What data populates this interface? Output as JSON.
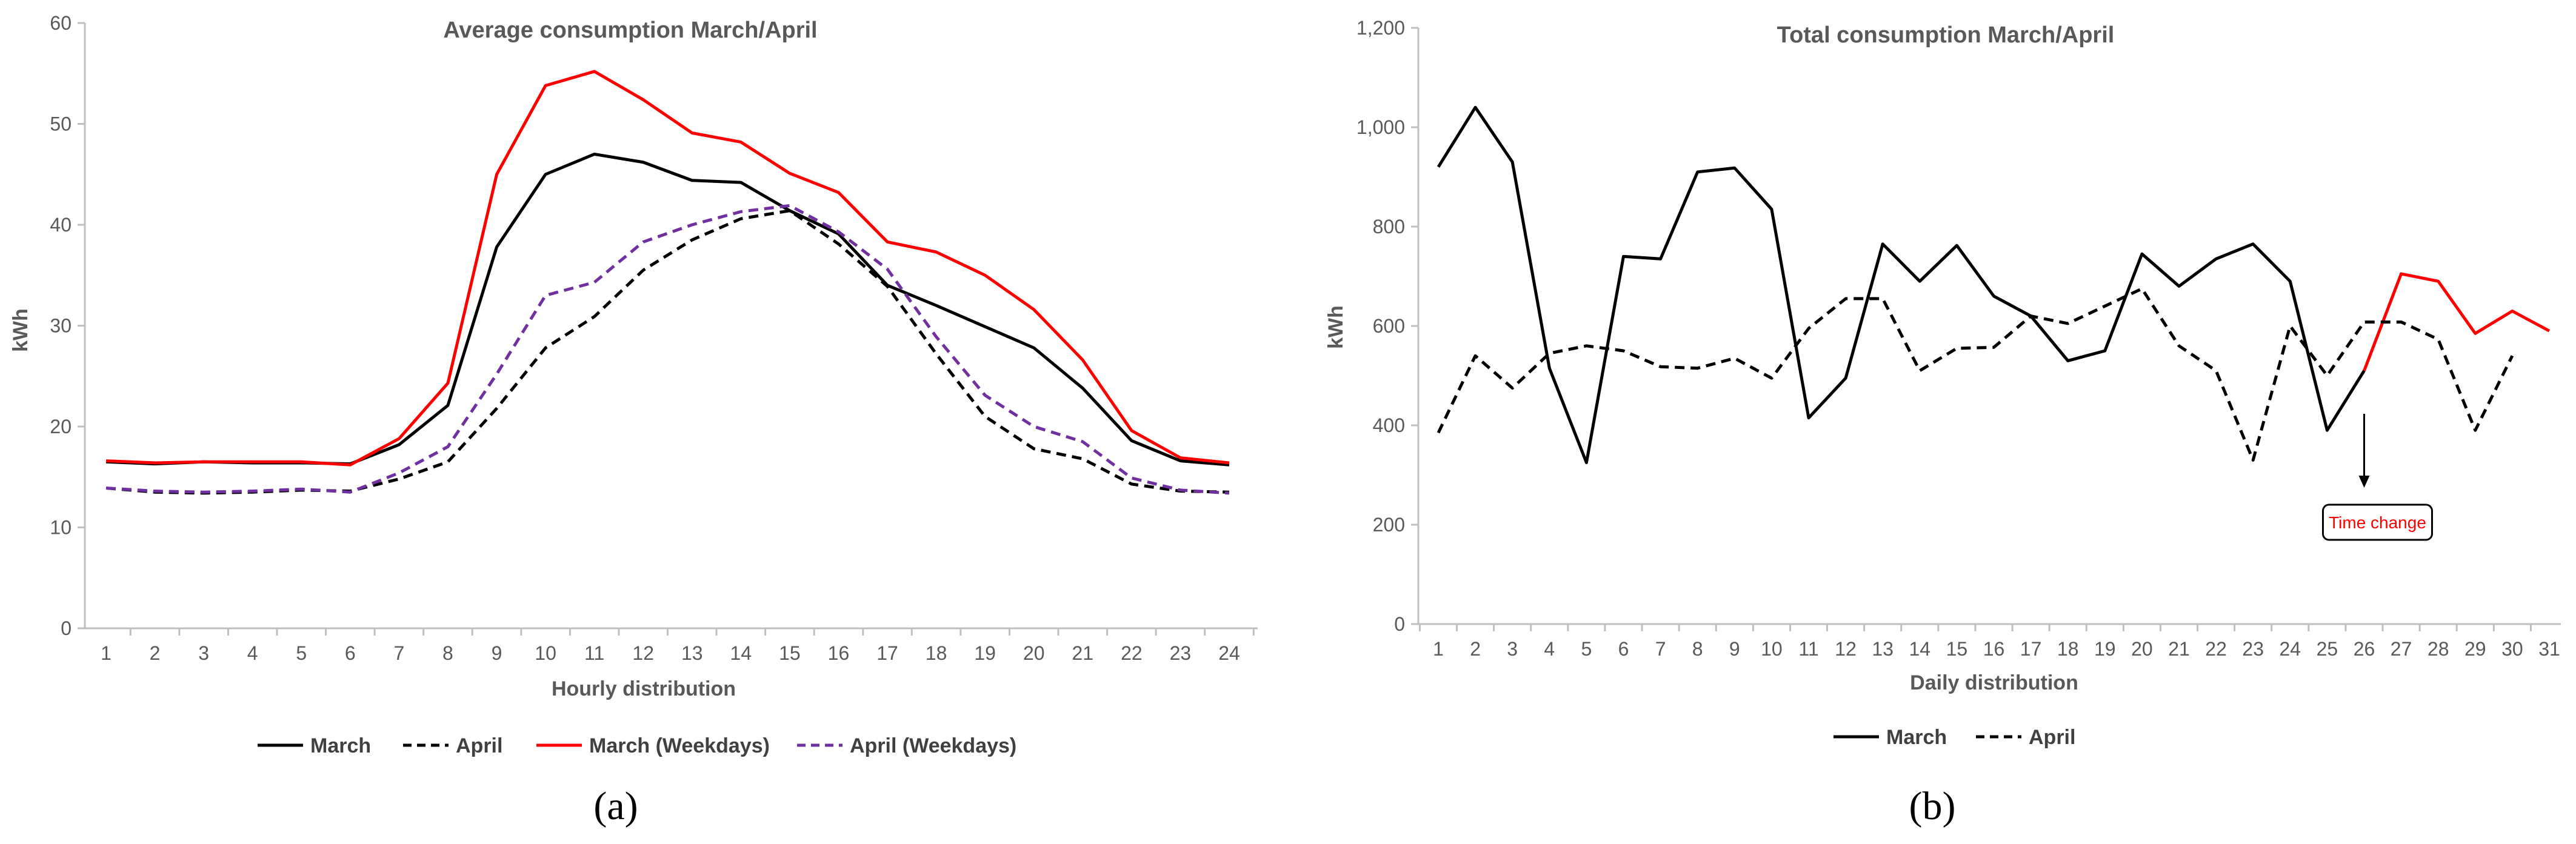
{
  "panels": [
    {
      "label_text": "(a)",
      "label_letter": "a",
      "chart_data": {
        "type": "line",
        "title": "Average consumption March/April",
        "xlabel": "Hourly distribution",
        "ylabel": "kWh",
        "ylim": [
          0,
          60
        ],
        "yticks": [
          0,
          10,
          20,
          30,
          40,
          50,
          60
        ],
        "ytick_labels": [
          "0",
          "10",
          "20",
          "30",
          "40",
          "50",
          "60"
        ],
        "categories": [
          "1",
          "2",
          "3",
          "4",
          "5",
          "6",
          "7",
          "8",
          "9",
          "10",
          "11",
          "12",
          "13",
          "14",
          "15",
          "16",
          "17",
          "18",
          "19",
          "20",
          "21",
          "22",
          "23",
          "24"
        ],
        "grid": false,
        "legend": "bottom",
        "series": [
          {
            "name": "March",
            "color": "#000000",
            "dash": "solid",
            "values": [
              16.5,
              16.3,
              16.5,
              16.4,
              16.4,
              16.3,
              18.2,
              22.1,
              37.8,
              45.0,
              47.0,
              46.2,
              44.4,
              44.2,
              41.4,
              39.1,
              34.0,
              32.0,
              29.9,
              27.8,
              23.8,
              18.6,
              16.6,
              16.2
            ]
          },
          {
            "name": "April",
            "color": "#000000",
            "dash": "dashed",
            "values": [
              13.9,
              13.5,
              13.4,
              13.5,
              13.7,
              13.6,
              14.8,
              16.5,
              21.8,
              27.8,
              30.9,
              35.5,
              38.5,
              40.6,
              41.4,
              38.1,
              33.9,
              27.2,
              21.0,
              17.8,
              16.8,
              14.3,
              13.6,
              13.5
            ]
          },
          {
            "name": "March (Weekdays)",
            "color": "#ff0000",
            "dash": "solid",
            "values": [
              16.6,
              16.4,
              16.5,
              16.5,
              16.5,
              16.2,
              18.8,
              24.3,
              45.0,
              53.8,
              55.2,
              52.4,
              49.1,
              48.2,
              45.1,
              43.2,
              38.3,
              37.3,
              35.0,
              31.6,
              26.6,
              19.6,
              16.9,
              16.4
            ]
          },
          {
            "name": "April (Weekdays)",
            "color": "#7030a0",
            "dash": "dashed",
            "values": [
              13.9,
              13.6,
              13.5,
              13.6,
              13.8,
              13.5,
              15.4,
              18.0,
              25.2,
              33.0,
              34.3,
              38.3,
              40.0,
              41.3,
              41.9,
              39.3,
              35.6,
              28.9,
              23.1,
              20.0,
              18.5,
              14.9,
              13.7,
              13.4
            ]
          }
        ]
      }
    },
    {
      "label_text": "(b)",
      "label_letter": "b",
      "chart_data": {
        "type": "line",
        "title": "Total consumption March/April",
        "xlabel": "Daily distribution",
        "ylabel": "kWh",
        "ylim": [
          0,
          1200
        ],
        "yticks": [
          0,
          200,
          400,
          600,
          800,
          1000,
          1200
        ],
        "ytick_labels": [
          "0",
          "200",
          "400",
          "600",
          "800",
          "1,000",
          "1,200"
        ],
        "categories": [
          "1",
          "2",
          "3",
          "4",
          "5",
          "6",
          "7",
          "8",
          "9",
          "10",
          "11",
          "12",
          "13",
          "14",
          "15",
          "16",
          "17",
          "18",
          "19",
          "20",
          "21",
          "22",
          "23",
          "24",
          "25",
          "26",
          "27",
          "28",
          "29",
          "30",
          "31"
        ],
        "grid": false,
        "legend": "bottom",
        "series": [
          {
            "name": "March",
            "color": "#000000",
            "dash": "solid",
            "values": [
              920,
              1040,
              930,
              515,
              325,
              740,
              735,
              910,
              918,
              835,
              415,
              495,
              765,
              690,
              762,
              660,
              620,
              530,
              550,
              745,
              680,
              735,
              765,
              690,
              390,
              510,
              705,
              690,
              585,
              630,
              590
            ]
          },
          {
            "name": "April",
            "color": "#000000",
            "dash": "dashed",
            "values": [
              385,
              540,
              475,
              545,
              560,
              550,
              518,
              515,
              535,
              495,
              595,
              655,
              655,
              510,
              555,
              557,
              620,
              605,
              640,
              675,
              560,
              510,
              330,
              600,
              500,
              608,
              608,
              573,
              390,
              540,
              null
            ]
          }
        ],
        "red_from_index": 25,
        "red_color": "#ff0000",
        "annotation": {
          "text": "Time change",
          "at_category": "26",
          "text_color": "#ff0000"
        }
      }
    }
  ]
}
